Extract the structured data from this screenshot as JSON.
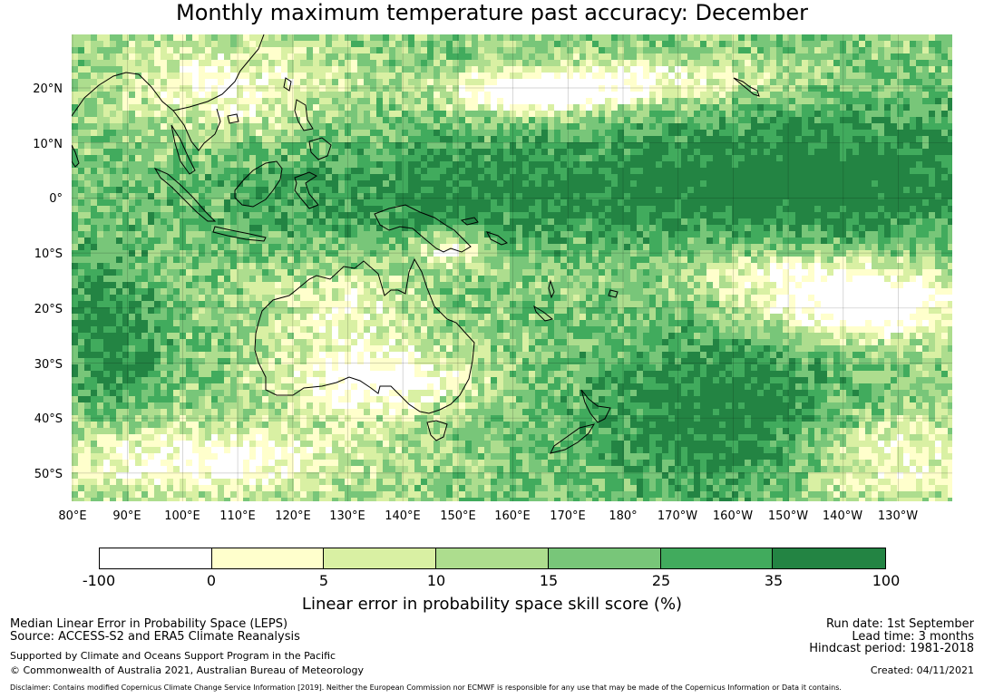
{
  "title": "Monthly maximum temperature past accuracy: December",
  "map": {
    "latitude_labels": [
      "20°N",
      "10°N",
      "0°",
      "10°S",
      "20°S",
      "30°S",
      "40°S",
      "50°S"
    ],
    "longitude_labels": [
      "80°E",
      "90°E",
      "100°E",
      "110°E",
      "120°E",
      "130°E",
      "140°E",
      "150°E",
      "160°E",
      "170°E",
      "180°",
      "170°W",
      "160°W",
      "150°W",
      "140°W",
      "130°W"
    ],
    "gridlines": true,
    "coastlines": [
      "Australia",
      "New Zealand",
      "New Guinea",
      "Indonesia",
      "Philippines",
      "Southeast Asia",
      "Pacific islands"
    ]
  },
  "colorbar": {
    "ticks": [
      "-100",
      "0",
      "5",
      "10",
      "15",
      "25",
      "35",
      "100"
    ],
    "colors": [
      "#ffffff",
      "#ffffcc",
      "#d9f0a3",
      "#addd8e",
      "#78c679",
      "#41ab5d",
      "#238443"
    ],
    "label": "Linear error in probability space skill score (%)"
  },
  "footer": {
    "left": {
      "line1": "Median Linear Error in Probability Space (LEPS)",
      "line2": "Source: ACCESS-S2 and ERA5 Climate Reanalysis",
      "line3": "Supported by Climate and Oceans Support Program in the Pacific",
      "line4": "© Commonwealth of Australia 2021, Australian Bureau of Meteorology"
    },
    "right": {
      "run_date": "Run date: 1st September",
      "lead_time": "Lead time: 3 months",
      "hindcast": "Hindcast period: 1981-2018",
      "created": "Created: 04/11/2021"
    },
    "disclaimer": "Disclaimer: Contains modified Copernicus Climate Change Service Information [2019]. Neither the European Commission nor ECMWF is responsible for any use that may be made of the Copernicus Information or Data it contains."
  }
}
